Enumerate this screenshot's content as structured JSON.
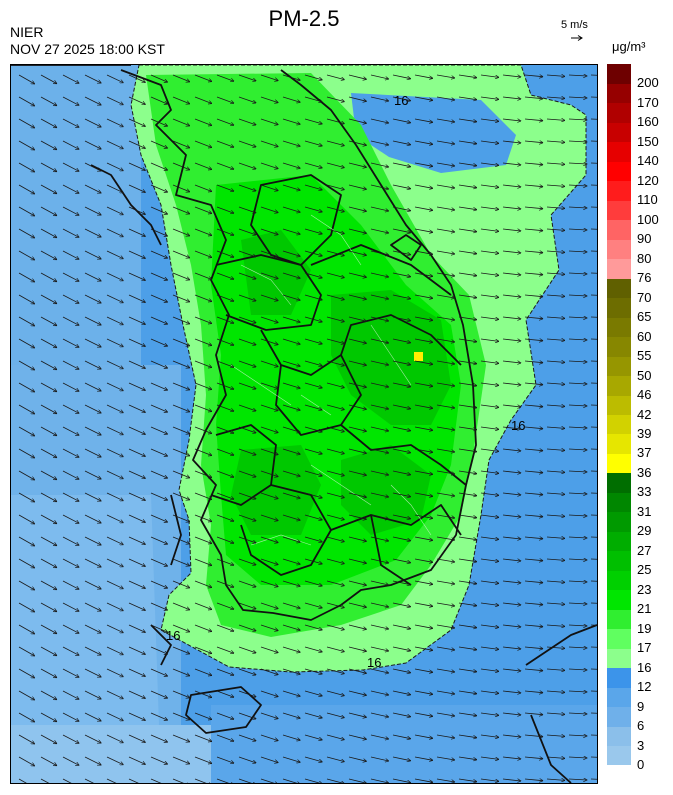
{
  "header": {
    "title": "PM-2.5",
    "agency": "NIER",
    "timestamp": "NOV 27 2025 18:00 KST",
    "wind_reference": "5 m/s",
    "unit": "μg/m³"
  },
  "map": {
    "contour_label": "16",
    "wind_direction": "west-northwest wind over the Yellow Sea turning westerly toward the East Sea",
    "hotspot_color": "#ffee00"
  },
  "legend": {
    "bins": [
      {
        "label": "0",
        "color": "#9ac8ec"
      },
      {
        "label": "3",
        "color": "#8bbfea"
      },
      {
        "label": "6",
        "color": "#6fb0ea"
      },
      {
        "label": "9",
        "color": "#5aa6ea"
      },
      {
        "label": "12",
        "color": "#3c94ea"
      },
      {
        "label": "16",
        "color": "#8cff8c"
      },
      {
        "label": "17",
        "color": "#60ff60"
      },
      {
        "label": "19",
        "color": "#30ee30"
      },
      {
        "label": "21",
        "color": "#00e600"
      },
      {
        "label": "23",
        "color": "#00d000"
      },
      {
        "label": "25",
        "color": "#00bf00"
      },
      {
        "label": "27",
        "color": "#00ad00"
      },
      {
        "label": "29",
        "color": "#009a00"
      },
      {
        "label": "31",
        "color": "#008700"
      },
      {
        "label": "33",
        "color": "#006e00"
      },
      {
        "label": "36",
        "color": "#ffff00"
      },
      {
        "label": "37",
        "color": "#e6e600"
      },
      {
        "label": "39",
        "color": "#d2d200"
      },
      {
        "label": "42",
        "color": "#bcbc00"
      },
      {
        "label": "46",
        "color": "#a8a800"
      },
      {
        "label": "50",
        "color": "#969600"
      },
      {
        "label": "55",
        "color": "#878700"
      },
      {
        "label": "60",
        "color": "#7a7a00"
      },
      {
        "label": "65",
        "color": "#6d6d00"
      },
      {
        "label": "70",
        "color": "#606000"
      },
      {
        "label": "76",
        "color": "#ff9a9a"
      },
      {
        "label": "80",
        "color": "#ff8080"
      },
      {
        "label": "90",
        "color": "#ff6464"
      },
      {
        "label": "100",
        "color": "#ff3c3c"
      },
      {
        "label": "110",
        "color": "#ff1c1c"
      },
      {
        "label": "120",
        "color": "#ff0000"
      },
      {
        "label": "140",
        "color": "#e60000"
      },
      {
        "label": "150",
        "color": "#c80000"
      },
      {
        "label": "160",
        "color": "#b00000"
      },
      {
        "label": "170",
        "color": "#960000"
      },
      {
        "label": "200",
        "color": "#6e0000"
      }
    ]
  }
}
